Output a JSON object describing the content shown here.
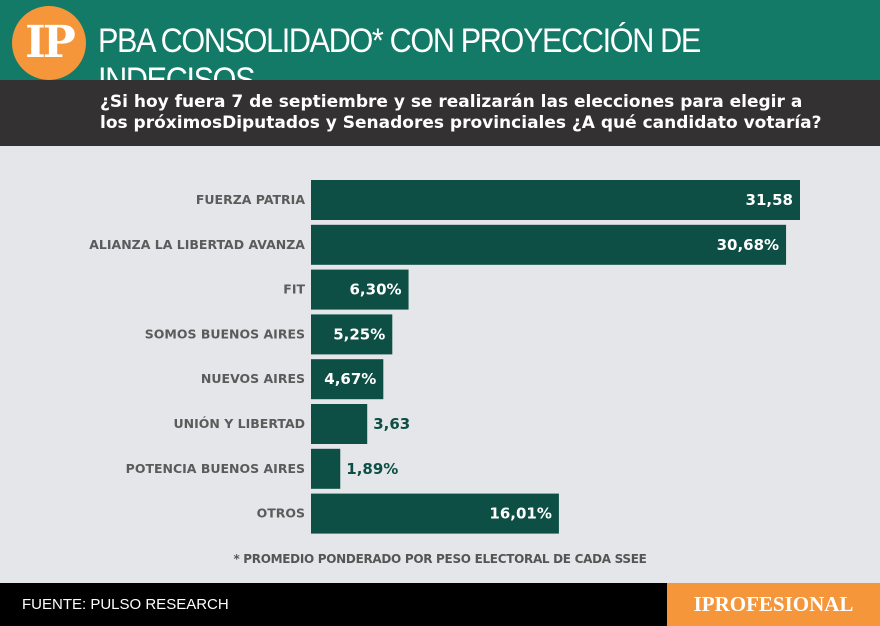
{
  "header": {
    "logo_text": "IP",
    "title": "PBA CONSOLIDADO* CON PROYECCIÓN DE INDECISOS",
    "question": "¿Si hoy fuera 7 de septiembre y se realizarán las elecciones para elegir a\nlos próximosDiputados y Senadores provinciales ¿A qué candidato votaría?"
  },
  "colors": {
    "header": "#127a67",
    "band": "#333132",
    "bar": "#0d4f45",
    "brand": "#f5963a"
  },
  "chart_data": {
    "type": "bar",
    "orientation": "horizontal",
    "categories": [
      "FUERZA PATRIA",
      "ALIANZA LA LIBERTAD AVANZA",
      "FIT",
      "SOMOS BUENOS AIRES",
      "NUEVOS AIRES",
      "UNIÓN Y LIBERTAD",
      "POTENCIA BUENOS AIRES",
      "OTROS"
    ],
    "values": [
      31.58,
      30.68,
      6.3,
      5.25,
      4.67,
      3.63,
      1.89,
      16.01
    ],
    "data_labels": [
      "31,58",
      "30,68%",
      "6,30%",
      "5,25%",
      "4,67%",
      "3,63",
      "1,89%",
      "16,01%"
    ],
    "grid": false
  },
  "footer": {
    "note": "* PROMEDIO PONDERADO POR PESO ELECTORAL DE CADA SSEE",
    "source": "FUENTE: PULSO RESEARCH",
    "brand": "IPROFESIONAL"
  }
}
